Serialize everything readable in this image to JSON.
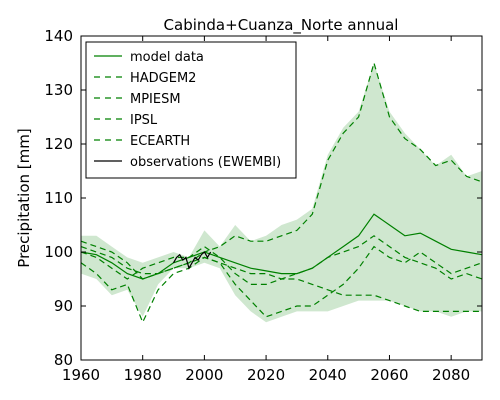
{
  "chart_data": {
    "type": "line",
    "title": "Cabinda+Cuanza_Norte annual",
    "xlabel": "",
    "ylabel": "Precipitation [mm]",
    "xlim": [
      1960,
      2090
    ],
    "ylim": [
      80,
      140
    ],
    "x_ticks": [
      1960,
      1980,
      2000,
      2020,
      2040,
      2060,
      2080
    ],
    "y_ticks": [
      80,
      90,
      100,
      110,
      120,
      130,
      140
    ],
    "grid": false,
    "legend_position": "top-left",
    "band": {
      "color": "#cfe7cf",
      "x": [
        1960,
        1965,
        1970,
        1975,
        1980,
        1985,
        1990,
        1995,
        2000,
        2005,
        2010,
        2015,
        2020,
        2025,
        2030,
        2035,
        2040,
        2045,
        2050,
        2055,
        2060,
        2065,
        2070,
        2075,
        2080,
        2085,
        2090
      ],
      "upper": [
        103,
        103,
        101,
        99,
        98,
        99,
        100,
        99,
        104,
        101,
        105,
        102,
        103,
        105,
        106,
        108,
        118,
        123,
        126,
        135,
        126,
        122,
        119,
        116,
        118,
        114,
        115
      ],
      "lower": [
        96,
        95,
        92,
        93,
        88,
        94,
        97,
        97,
        98,
        97,
        92,
        89,
        87,
        88,
        89,
        89,
        89,
        90,
        91,
        91,
        91,
        90,
        89,
        89,
        88,
        89,
        89
      ]
    },
    "x": [
      1960,
      1965,
      1970,
      1975,
      1980,
      1985,
      1990,
      1995,
      2000,
      2005,
      2010,
      2015,
      2020,
      2025,
      2030,
      2035,
      2040,
      2045,
      2050,
      2055,
      2060,
      2065,
      2070,
      2075,
      2080,
      2085,
      2090
    ],
    "series": [
      {
        "name": "model data",
        "color": "#008000",
        "style": "solid",
        "values": [
          100,
          99.5,
          98,
          96,
          95,
          96,
          98,
          99,
          100,
          99,
          98,
          97,
          96.5,
          96,
          96,
          97,
          99,
          101,
          103,
          107,
          105,
          103,
          103.5,
          102,
          100.5,
          100,
          99.5
        ]
      },
      {
        "name": "HADGEM2",
        "color": "#008000",
        "style": "dashed",
        "values": [
          102,
          101,
          100,
          98,
          95,
          96,
          97,
          98,
          100,
          101,
          103,
          102,
          102,
          103,
          104,
          107,
          117,
          122,
          125,
          135,
          125,
          121,
          119,
          116,
          117,
          114,
          113
        ]
      },
      {
        "name": "MPIESM",
        "color": "#008000",
        "style": "dashed",
        "values": [
          98,
          96,
          93,
          94,
          87,
          93,
          96,
          97,
          99,
          98,
          94,
          91,
          88,
          89,
          90,
          90,
          92,
          94,
          97,
          101,
          99,
          98,
          100,
          98,
          96,
          97,
          98
        ]
      },
      {
        "name": "IPSL",
        "color": "#008000",
        "style": "dashed",
        "values": [
          100,
          99,
          97,
          95,
          97,
          98,
          99,
          99,
          101,
          99,
          96,
          94,
          94,
          95,
          96,
          97,
          99,
          100,
          101,
          103,
          101,
          99,
          98,
          97,
          95,
          96,
          95
        ]
      },
      {
        "name": "ECEARTH",
        "color": "#008000",
        "style": "dashed",
        "values": [
          101,
          100,
          99,
          97,
          96,
          96,
          97,
          98,
          99,
          98,
          97,
          96,
          96,
          95,
          95,
          94,
          93,
          92,
          92,
          92,
          91,
          90,
          89,
          89,
          89,
          89,
          89
        ]
      },
      {
        "name": "observations (EWEMBI)",
        "color": "#000000",
        "style": "solid",
        "x": [
          1990,
          1991,
          1992,
          1993,
          1994,
          1995,
          1996,
          1997,
          1998,
          1999,
          2000,
          2001,
          2002
        ],
        "values": [
          98,
          99,
          99.5,
          98.5,
          99,
          97,
          98,
          99,
          98.5,
          99.5,
          100,
          99,
          100
        ]
      }
    ]
  }
}
